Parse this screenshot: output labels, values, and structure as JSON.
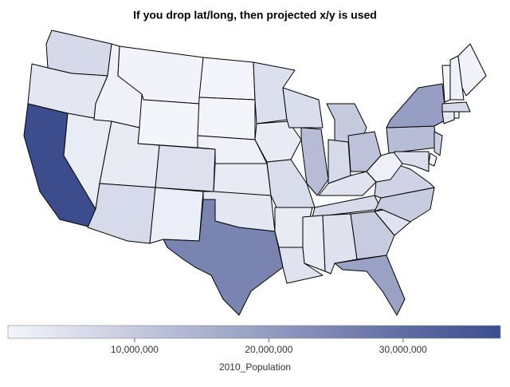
{
  "chart_data": {
    "type": "choropleth",
    "title": "If you drop lat/long, then projected x/y is used",
    "legend_title": "2010_Population",
    "colors": [
      "#f4f5fb",
      "#3c4c8d"
    ],
    "clim": [
      563626,
      37253956
    ],
    "cticks": [
      {
        "value": 10000000,
        "label": "10,000,000"
      },
      {
        "value": 20000000,
        "label": "20,000,000"
      },
      {
        "value": 30000000,
        "label": "30,000,000"
      }
    ],
    "values": [
      6724540,
      3831074,
      37253956,
      2700551,
      1567582,
      989415,
      563626,
      2763885,
      6392017,
      5029196,
      2059179,
      672591,
      814180,
      1826341,
      2853118,
      3751351,
      25145561,
      5303925,
      3046355,
      5988927,
      2915918,
      4533372,
      5686986,
      12830632,
      9883640,
      6483802,
      11536504,
      4339367,
      6346105,
      2967297,
      4779736,
      9687653,
      18801310,
      4625364,
      9535483,
      8001024,
      1852994,
      12702379,
      19378102,
      8791894,
      897934,
      5773552,
      3574097,
      1052567,
      6547629,
      625741,
      1316470,
      1328361
    ]
  }
}
